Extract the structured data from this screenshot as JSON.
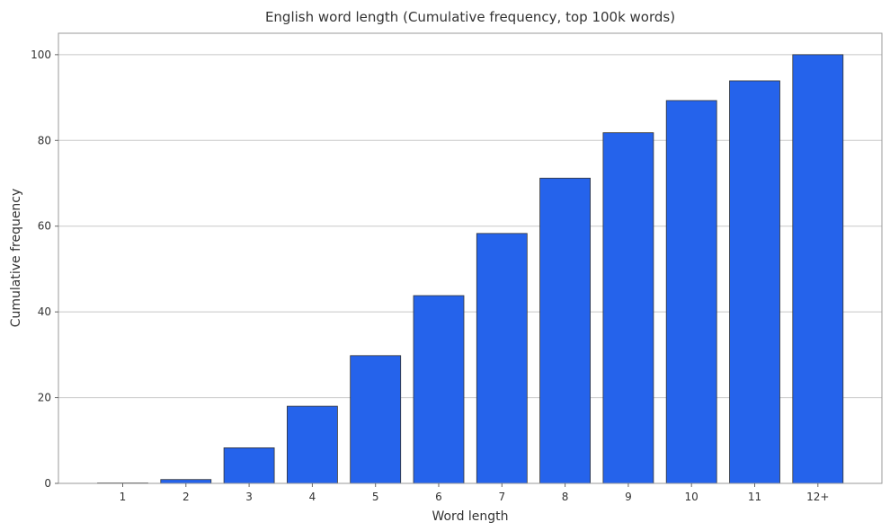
{
  "chart_data": {
    "type": "bar",
    "title": "English word length (Cumulative frequency, top 100k words)",
    "xlabel": "Word length",
    "ylabel": "Cumulative frequency",
    "categories": [
      "1",
      "2",
      "3",
      "4",
      "5",
      "6",
      "7",
      "8",
      "9",
      "10",
      "11",
      "12+"
    ],
    "values": [
      0.1,
      0.9,
      8.3,
      18.0,
      29.8,
      43.8,
      58.3,
      71.2,
      81.8,
      89.3,
      93.9,
      100.0
    ],
    "ylim": [
      0,
      105
    ],
    "yticks": [
      "0",
      "20",
      "40",
      "60",
      "80",
      "100"
    ],
    "grid": "horizontal",
    "bar_color": "#2563eb",
    "bar_edge_color": "#333333"
  }
}
